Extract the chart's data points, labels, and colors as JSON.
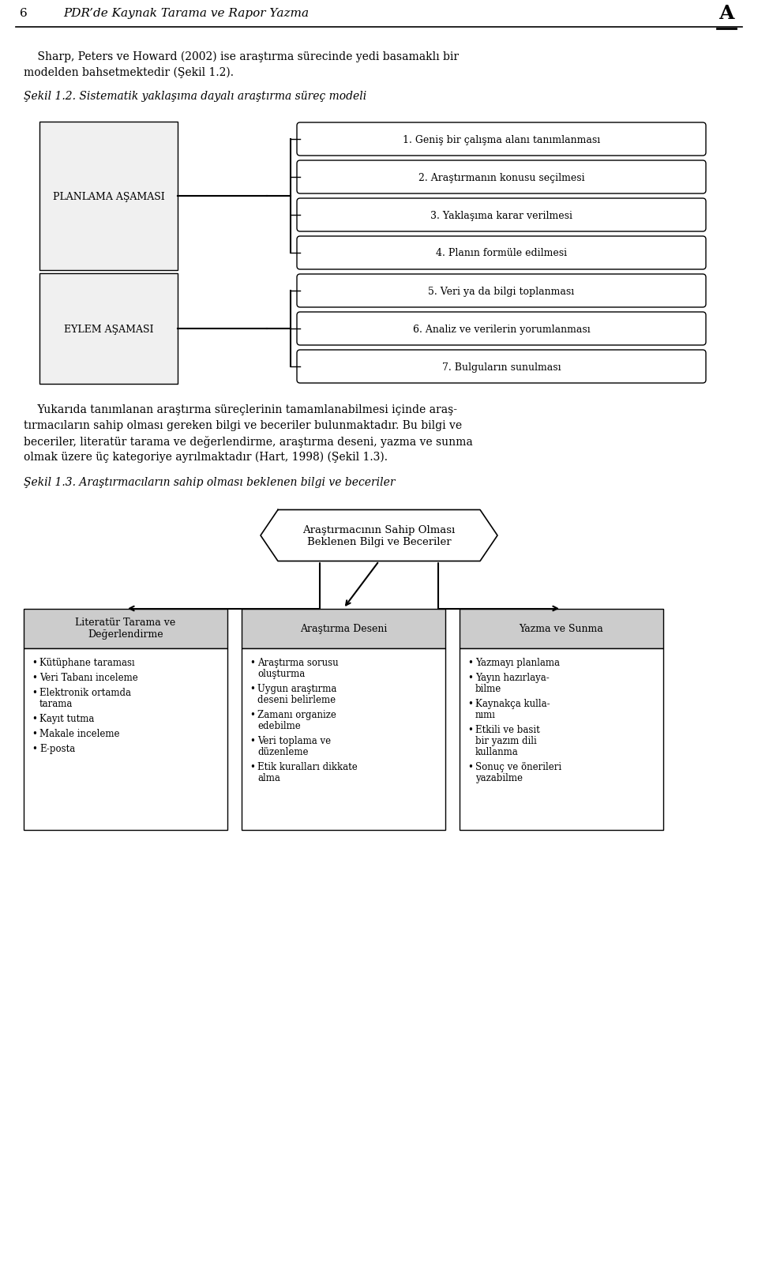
{
  "bg_color": "#ffffff",
  "page_number": "6",
  "header_title": "PDR’de Kaynak Tarama ve Rapor Yazma",
  "para1_lines": [
    "    Sharp, Peters ve Howard (2002) ise araştırma sürecinde yedi basamaklı bir",
    "modelden bahsetmektedir (Şekil 1.2)."
  ],
  "fig1_caption": "Şekil 1.2. Sistematik yaklaşıma dayalı araştırma süreç modeli",
  "planlama_label": "PLANLAMA AŞAMASI",
  "eylem_label": "EYLEM AŞAMASI",
  "steps": [
    "1. Geniş bir çalışma alanı tanımlanması",
    "2. Araştırmanın konusu seçilmesi",
    "3. Yaklaşıma karar verilmesi",
    "4. Planın formüle edilmesi",
    "5. Veri ya da bilgi toplanması",
    "6. Analiz ve verilerin yorumlanması",
    "7. Bulguların sunulması"
  ],
  "para2_lines": [
    "    Yukarıda tanımlanan araştırma süreçlerinin tamamlanabilmesi içinde araş-",
    "tırmacıların sahip olması gereken bilgi ve beceriler bulunmaktadır. Bu bilgi ve",
    "beceriler, literatür tarama ve değerlendirme, araştırma deseni, yazma ve sunma",
    "olmak üzere üç kategoriye ayrılmaktadır (Hart, 1998) (Şekil 1.3)."
  ],
  "fig2_caption": "Şekil 1.3. Araştırmacıların sahip olması beklenen bilgi ve beceriler",
  "hexagon_text": "Araştırmacının Sahip Olması\nBeklenen Bilgi ve Beceriler",
  "col1_title": "Literatür Tarama ve\nDeğerlendirme",
  "col1_items": [
    "Kütüphane taraması",
    "Veri Tabanı inceleme",
    "Elektronik ortamda\ntarama",
    "Kayıt tutma",
    "Makale inceleme",
    "E-posta"
  ],
  "col2_title": "Araştırma Deseni",
  "col2_items": [
    "Araştırma sorusu\noluşturma",
    "Uygun araştırma\ndeseni belirleme",
    "Zamanı organize\nedebilme",
    "Veri toplama ve\ndüzenleme",
    "Etik kuralları dikkate\nalma"
  ],
  "col3_title": "Yazma ve Sunma",
  "col3_items": [
    "Yazmayı planlama",
    "Yayın hazırlaya-\nbilme",
    "Kaynakça kulla-\nnımı",
    "Etkili ve basit\nbir yazım dili\nkullanma",
    "Sonuç ve önerileri\nyazabilme"
  ]
}
